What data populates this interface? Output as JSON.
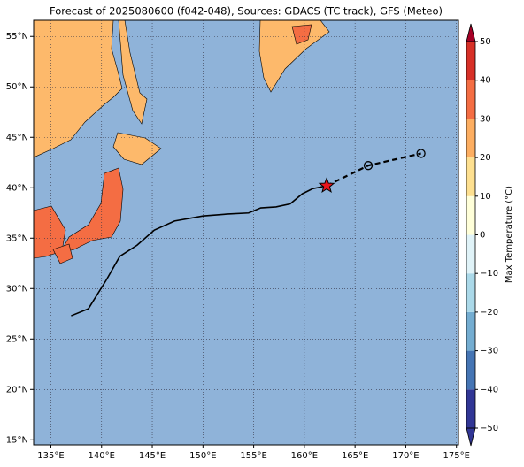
{
  "chart_data": {
    "type": "map",
    "title": "Forecast of 2025080600 (f042-048), Sources: GDACS (TC track), GFS (Meteo)",
    "xlim": [
      133.3,
      175.2
    ],
    "ylim": [
      14.5,
      56.6
    ],
    "xticks": [
      {
        "value": 135,
        "label": "135°E"
      },
      {
        "value": 140,
        "label": "140°E"
      },
      {
        "value": 145,
        "label": "145°E"
      },
      {
        "value": 150,
        "label": "150°E"
      },
      {
        "value": 155,
        "label": "155°E"
      },
      {
        "value": 160,
        "label": "160°E"
      },
      {
        "value": 165,
        "label": "165°E"
      },
      {
        "value": 170,
        "label": "170°E"
      },
      {
        "value": 175,
        "label": "175°E"
      }
    ],
    "yticks": [
      {
        "value": 15,
        "label": "15°N"
      },
      {
        "value": 20,
        "label": "20°N"
      },
      {
        "value": 25,
        "label": "25°N"
      },
      {
        "value": 30,
        "label": "30°N"
      },
      {
        "value": 35,
        "label": "35°N"
      },
      {
        "value": 40,
        "label": "40°N"
      },
      {
        "value": 45,
        "label": "45°N"
      },
      {
        "value": 50,
        "label": "50°N"
      },
      {
        "value": 55,
        "label": "55°N"
      }
    ],
    "grid": true,
    "track": {
      "color": "#000000",
      "lon": [
        137,
        138.7,
        140.5,
        141.8,
        143.5,
        145.2,
        147.2,
        150,
        152.5,
        154.5,
        155.7,
        157.2,
        158.6,
        159.8,
        160.8,
        162.2
      ],
      "lat": [
        27.3,
        28.0,
        30.9,
        33.2,
        34.3,
        35.8,
        36.7,
        37.2,
        37.4,
        37.5,
        38.0,
        38.1,
        38.4,
        39.4,
        39.9,
        40.2
      ]
    },
    "forecast": {
      "color": "#000000",
      "lon": [
        162.2,
        166.3,
        171.5
      ],
      "lat": [
        40.2,
        42.2,
        43.4
      ]
    },
    "current": {
      "color": "#e8141c",
      "lon": 162.2,
      "lat": 40.2
    },
    "colorbar": {
      "label": "Max Temperature (°C)",
      "ticks": [
        {
          "value": -50,
          "label": "−50"
        },
        {
          "value": -40,
          "label": "−40"
        },
        {
          "value": -30,
          "label": "−30"
        },
        {
          "value": -20,
          "label": "−20"
        },
        {
          "value": -10,
          "label": "−10"
        },
        0,
        10,
        20,
        30,
        40,
        50
      ],
      "colors": [
        "#313695",
        "#4575b4",
        "#74add1",
        "#abd9e9",
        "#e0f3f8",
        "#ffffd9",
        "#fee090",
        "#fdae61",
        "#f46d43",
        "#d73027",
        "#a50026"
      ]
    }
  }
}
